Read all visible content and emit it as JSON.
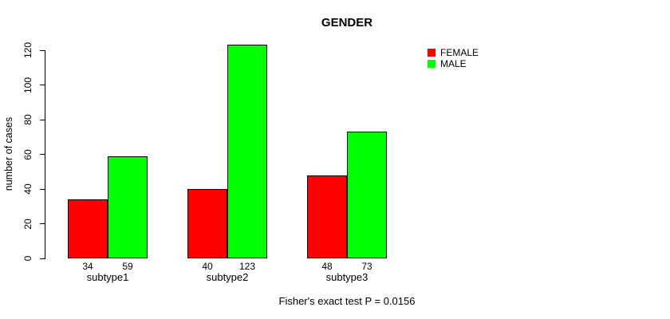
{
  "chart_data": {
    "type": "bar",
    "title": "GENDER",
    "ylabel": "number of cases",
    "xlabel": "",
    "categories": [
      "subtype1",
      "subtype2",
      "subtype3"
    ],
    "series": [
      {
        "name": "FEMALE",
        "color": "#ff0000",
        "values": [
          34,
          40,
          48
        ]
      },
      {
        "name": "MALE",
        "color": "#00ff00",
        "values": [
          59,
          123,
          73
        ]
      }
    ],
    "yticks": [
      0,
      20,
      40,
      60,
      80,
      100,
      120
    ],
    "ylim": [
      0,
      123
    ],
    "grid": "off",
    "legend_position": "upper-right",
    "bar_value_labels": [
      [
        34,
        59
      ],
      [
        40,
        123
      ],
      [
        48,
        73
      ]
    ],
    "annotation": "Fisher's exact test P = 0.0156"
  }
}
